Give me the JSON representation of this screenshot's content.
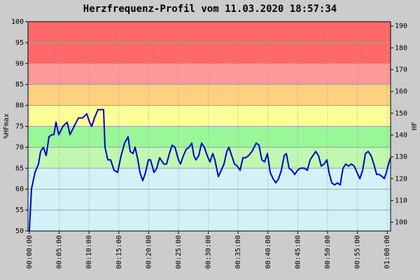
{
  "chart_data": {
    "type": "line",
    "title": "Herzfrequenz-Profil vom 11.03.2020 18:57:34",
    "y_label": "%HFmax",
    "y2_label": "HF",
    "xlim": [
      -0.23,
      60.56
    ],
    "ylim": [
      50,
      100
    ],
    "y2lim": [
      96,
      192
    ],
    "xticks": [
      {
        "value": 0,
        "label": "00:00:00"
      },
      {
        "value": 5,
        "label": "00:05:00"
      },
      {
        "value": 10,
        "label": "00:10:00"
      },
      {
        "value": 15,
        "label": "00:15:00"
      },
      {
        "value": 20,
        "label": "00:20:00"
      },
      {
        "value": 25,
        "label": "00:25:00"
      },
      {
        "value": 30,
        "label": "00:30:00"
      },
      {
        "value": 35,
        "label": "00:35:00"
      },
      {
        "value": 40,
        "label": "00:40:00"
      },
      {
        "value": 45,
        "label": "00:45:00"
      },
      {
        "value": 50,
        "label": "00:50:00"
      },
      {
        "value": 55,
        "label": "00:55:00"
      },
      {
        "value": 60,
        "label": "01:00:00"
      }
    ],
    "yticks": [
      50,
      55,
      60,
      65,
      70,
      75,
      80,
      85,
      90,
      95,
      100
    ],
    "y2ticks": [
      100,
      110,
      120,
      130,
      140,
      150,
      160,
      170,
      180,
      190
    ],
    "grid": true,
    "zones": [
      {
        "from": 50,
        "to": 65,
        "color": "#d2f2f8"
      },
      {
        "from": 65,
        "to": 70,
        "color": "#c0f8b0"
      },
      {
        "from": 70,
        "to": 75,
        "color": "#98f898"
      },
      {
        "from": 75,
        "to": 80,
        "color": "#ffff98"
      },
      {
        "from": 80,
        "to": 85,
        "color": "#ffd080"
      },
      {
        "from": 85,
        "to": 90,
        "color": "#ff9898"
      },
      {
        "from": 90,
        "to": 100,
        "color": "#ff6868"
      }
    ],
    "color": "#0000cc",
    "x": [
      0,
      0.35,
      0.94,
      1.53,
      1.88,
      2.35,
      2.82,
      3.29,
      3.76,
      4.11,
      4.46,
      4.93,
      5.63,
      6.34,
      6.81,
      7.51,
      8.22,
      8.92,
      9.62,
      10.09,
      10.45,
      10.92,
      11.5,
      12.44,
      12.68,
      13.15,
      13.62,
      14.2,
      14.79,
      15.38,
      15.96,
      16.55,
      16.9,
      17.37,
      17.72,
      18.19,
      18.54,
      19.01,
      19.48,
      19.95,
      20.31,
      20.89,
      21.36,
      21.83,
      22.54,
      23.0,
      23.47,
      23.94,
      24.41,
      25.0,
      25.35,
      25.82,
      26.29,
      26.76,
      27.23,
      27.58,
      27.93,
      28.4,
      28.87,
      29.34,
      29.81,
      30.28,
      30.75,
      31.1,
      31.69,
      32.16,
      32.63,
      33.1,
      33.45,
      33.92,
      34.39,
      34.86,
      35.33,
      35.8,
      36.27,
      36.74,
      37.32,
      38.03,
      38.5,
      38.97,
      39.44,
      39.91,
      40.38,
      40.85,
      41.31,
      41.78,
      42.25,
      42.72,
      43.08,
      43.54,
      44.01,
      44.48,
      44.95,
      45.42,
      46.13,
      46.6,
      47.07,
      47.54,
      48.0,
      48.47,
      48.94,
      49.41,
      49.88,
      50.23,
      50.7,
      51.17,
      51.64,
      52.11,
      52.58,
      53.05,
      53.52,
      53.99,
      54.46,
      54.93,
      55.4,
      55.87,
      56.34,
      56.81,
      57.28,
      57.75,
      58.22,
      58.69,
      59.15,
      59.51,
      59.86,
      60.21,
      60.56
    ],
    "values": [
      50,
      60,
      64,
      66,
      69,
      70,
      68,
      72.5,
      73,
      73,
      76,
      73,
      75,
      76,
      73,
      75,
      77,
      77,
      78,
      76,
      75,
      77,
      79,
      79,
      70,
      67,
      67,
      64.5,
      64,
      68,
      71,
      72.5,
      69,
      68.5,
      70,
      67,
      64,
      62,
      64,
      67,
      67,
      64,
      65,
      67.5,
      66,
      66,
      68.5,
      70.5,
      70,
      67,
      66,
      68,
      69.5,
      70,
      71,
      68,
      67,
      68,
      71,
      70,
      68,
      66.5,
      68.5,
      67,
      63,
      64.5,
      66,
      69,
      70,
      68,
      66,
      65.5,
      64.5,
      67.5,
      67.5,
      68,
      69,
      71,
      70.5,
      67,
      66.5,
      68.5,
      64,
      62.5,
      61.5,
      62.5,
      64.5,
      68,
      68.5,
      65,
      64.5,
      63.5,
      64.5,
      65,
      65,
      64.5,
      67,
      68,
      69,
      68,
      65.5,
      66,
      67,
      64,
      61.5,
      61,
      61.5,
      61,
      65,
      66,
      65.5,
      66,
      65.5,
      64,
      62.5,
      64.5,
      68.5,
      69,
      68,
      66,
      63.5,
      63.5,
      63,
      62.5,
      64,
      66,
      67.5
    ]
  }
}
